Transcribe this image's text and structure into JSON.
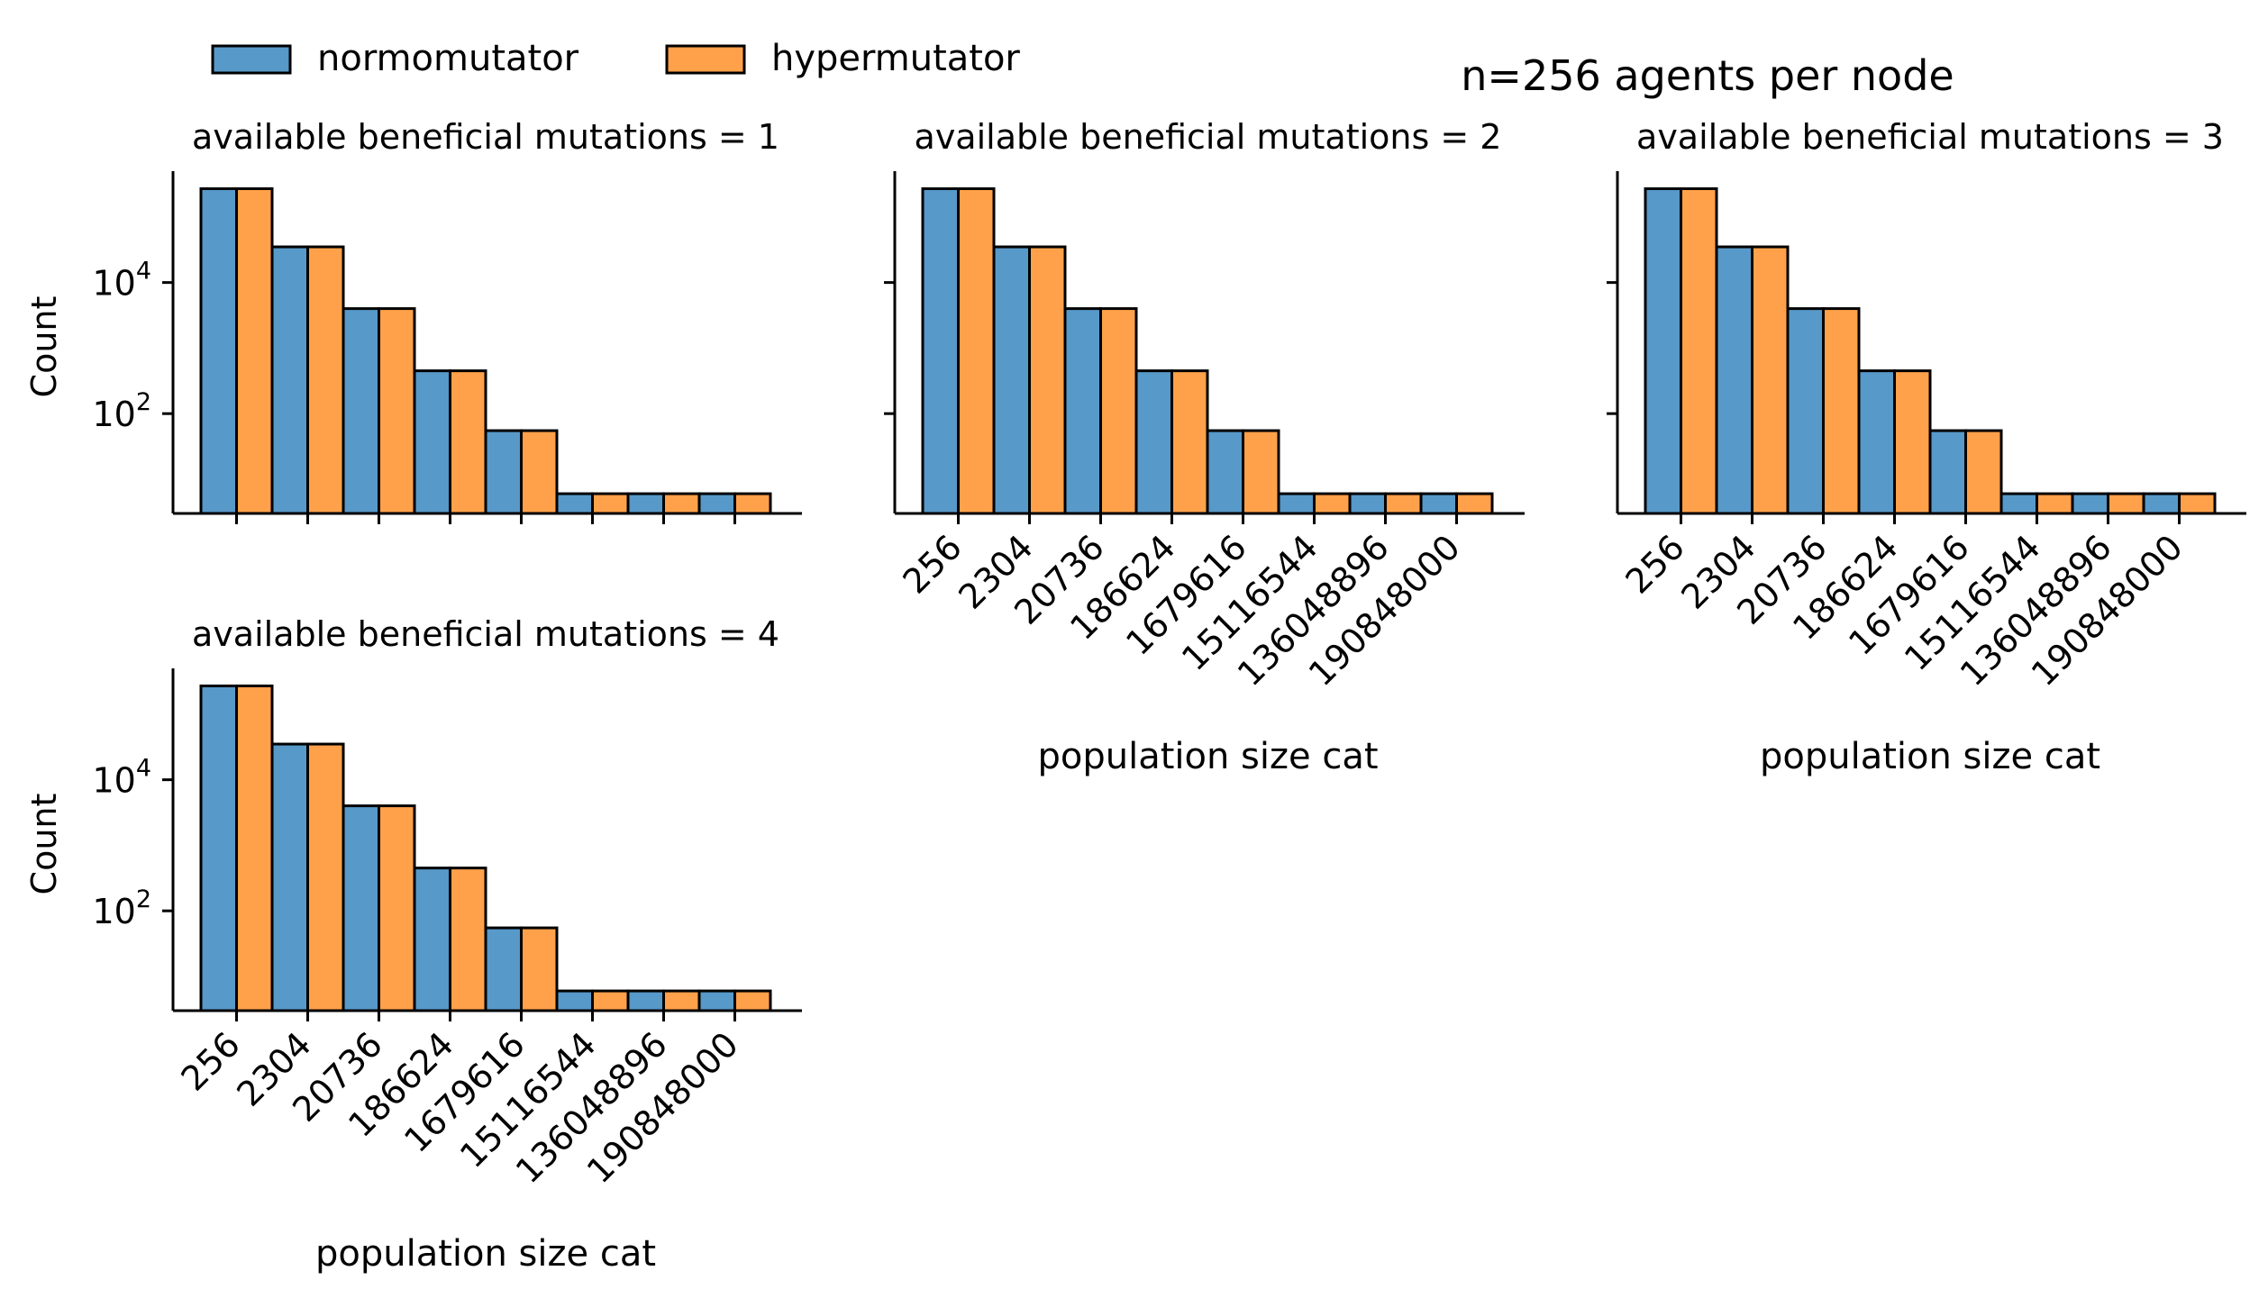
{
  "figure": {
    "suptitle": "n=256 agents per node",
    "legend": {
      "placement": "top-left",
      "entries": [
        {
          "label": "normomutator",
          "color": "#5799c8"
        },
        {
          "label": "hypermutator",
          "color": "#ffa14a"
        }
      ]
    }
  },
  "chart_data": [
    {
      "type": "bar",
      "title": "available beneficial mutations = 1",
      "xlabel": "",
      "ylabel": "Count",
      "yscale": "log",
      "ylim": [
        3,
        500000
      ],
      "yticks": [
        {
          "value": 100,
          "label": "10",
          "exp": "2"
        },
        {
          "value": 10000,
          "label": "10",
          "exp": "4"
        }
      ],
      "categories": [
        "256",
        "2304",
        "20736",
        "186624",
        "1679616",
        "15116544",
        "136048896",
        "190848000"
      ],
      "show_xticklabels": false,
      "series": [
        {
          "name": "normomutator",
          "color": "#5799c8",
          "values": [
            270000,
            35000,
            4000,
            450,
            55,
            6,
            6,
            6
          ]
        },
        {
          "name": "hypermutator",
          "color": "#ffa14a",
          "values": [
            270000,
            35000,
            4000,
            450,
            55,
            6,
            6,
            6
          ]
        }
      ]
    },
    {
      "type": "bar",
      "title": "available beneficial mutations = 2",
      "xlabel": "population size cat",
      "ylabel": "",
      "yscale": "log",
      "ylim": [
        3,
        500000
      ],
      "yticks": [
        {
          "value": 100,
          "label": "",
          "exp": ""
        },
        {
          "value": 10000,
          "label": "",
          "exp": ""
        }
      ],
      "categories": [
        "256",
        "2304",
        "20736",
        "186624",
        "1679616",
        "15116544",
        "136048896",
        "190848000"
      ],
      "show_xticklabels": true,
      "series": [
        {
          "name": "normomutator",
          "color": "#5799c8",
          "values": [
            270000,
            35000,
            4000,
            450,
            55,
            6,
            6,
            6
          ]
        },
        {
          "name": "hypermutator",
          "color": "#ffa14a",
          "values": [
            270000,
            35000,
            4000,
            450,
            55,
            6,
            6,
            6
          ]
        }
      ]
    },
    {
      "type": "bar",
      "title": "available beneficial mutations = 3",
      "xlabel": "population size cat",
      "ylabel": "",
      "yscale": "log",
      "ylim": [
        3,
        500000
      ],
      "yticks": [
        {
          "value": 100,
          "label": "",
          "exp": ""
        },
        {
          "value": 10000,
          "label": "",
          "exp": ""
        }
      ],
      "categories": [
        "256",
        "2304",
        "20736",
        "186624",
        "1679616",
        "15116544",
        "136048896",
        "190848000"
      ],
      "show_xticklabels": true,
      "series": [
        {
          "name": "normomutator",
          "color": "#5799c8",
          "values": [
            270000,
            35000,
            4000,
            450,
            55,
            6,
            6,
            6
          ]
        },
        {
          "name": "hypermutator",
          "color": "#ffa14a",
          "values": [
            270000,
            35000,
            4000,
            450,
            55,
            6,
            6,
            6
          ]
        }
      ]
    },
    {
      "type": "bar",
      "title": "available beneficial mutations = 4",
      "xlabel": "population size cat",
      "ylabel": "Count",
      "yscale": "log",
      "ylim": [
        3,
        500000
      ],
      "yticks": [
        {
          "value": 100,
          "label": "10",
          "exp": "2"
        },
        {
          "value": 10000,
          "label": "10",
          "exp": "4"
        }
      ],
      "categories": [
        "256",
        "2304",
        "20736",
        "186624",
        "1679616",
        "15116544",
        "136048896",
        "190848000"
      ],
      "show_xticklabels": true,
      "series": [
        {
          "name": "normomutator",
          "color": "#5799c8",
          "values": [
            270000,
            35000,
            4000,
            450,
            55,
            6,
            6,
            6
          ]
        },
        {
          "name": "hypermutator",
          "color": "#ffa14a",
          "values": [
            270000,
            35000,
            4000,
            450,
            55,
            6,
            6,
            6
          ]
        }
      ]
    }
  ]
}
